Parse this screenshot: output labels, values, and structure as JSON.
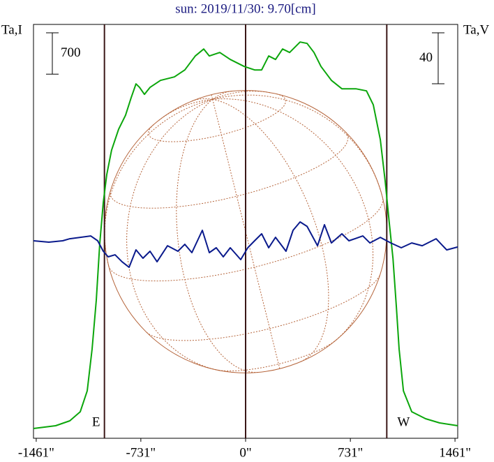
{
  "chart_data": {
    "type": "line",
    "title": "sun: 2019/11/30: 9.70[cm]",
    "y_label": "Ta,I",
    "y2_label": "Ta,V",
    "xlim": [
      -1480,
      1480
    ],
    "xticks": [
      {
        "value": -1461,
        "label": "-1461\""
      },
      {
        "value": -731,
        "label": "-731\""
      },
      {
        "value": 0,
        "label": "0\""
      },
      {
        "value": 731,
        "label": "731\""
      },
      {
        "value": 1461,
        "label": "1461\""
      }
    ],
    "ylim": [
      0,
      7000
    ],
    "y2lim": [
      0,
      325
    ],
    "scale_bars": [
      {
        "axis": "y",
        "value": 700
      },
      {
        "axis": "y2",
        "value": 40
      }
    ],
    "limbs": [
      {
        "x": -985,
        "label": "E"
      },
      {
        "x": 985,
        "label": "W"
      }
    ],
    "center_line": 0,
    "series": [
      {
        "name": "Ta,I",
        "color": "#0ba60b",
        "x": [
          -1480,
          -1325,
          -1227,
          -1154,
          -1105,
          -1071,
          -1042,
          -1018,
          -993,
          -969,
          -935,
          -886,
          -838,
          -799,
          -765,
          -740,
          -706,
          -667,
          -594,
          -497,
          -424,
          -351,
          -292,
          -253,
          -180,
          -107,
          -10,
          63,
          112,
          161,
          209,
          258,
          307,
          380,
          429,
          477,
          526,
          599,
          672,
          769,
          843,
          891,
          940,
          974,
          1003,
          1028,
          1052,
          1071,
          1101,
          1159,
          1256,
          1354,
          1480
        ],
        "values": [
          165,
          212,
          295,
          448,
          802,
          1510,
          2336,
          3280,
          3988,
          4460,
          4873,
          5227,
          5463,
          5758,
          5994,
          5935,
          5817,
          5935,
          6053,
          6112,
          6230,
          6466,
          6584,
          6466,
          6525,
          6407,
          6289,
          6230,
          6230,
          6466,
          6407,
          6584,
          6525,
          6702,
          6679,
          6525,
          6289,
          6053,
          5912,
          5912,
          5876,
          5640,
          5050,
          4342,
          3634,
          3044,
          2218,
          1510,
          802,
          448,
          330,
          260,
          212
        ]
      },
      {
        "name": "Ta,V",
        "color": "#0a1a8c",
        "axis": "y2",
        "x": [
          -1480,
          -1373,
          -1276,
          -1227,
          -1154,
          -1081,
          -1032,
          -993,
          -959,
          -911,
          -862,
          -813,
          -765,
          -716,
          -667,
          -618,
          -545,
          -472,
          -424,
          -375,
          -302,
          -253,
          -205,
          -156,
          -107,
          -34,
          15,
          63,
          112,
          161,
          209,
          282,
          331,
          380,
          429,
          502,
          550,
          599,
          672,
          721,
          818,
          867,
          940,
          1013,
          1086,
          1159,
          1232,
          1329,
          1403,
          1480
        ],
        "values": [
          155.1,
          154,
          155.1,
          156.7,
          157.8,
          158.9,
          155.1,
          146.9,
          142.5,
          144.1,
          138.6,
          134.3,
          148,
          141.4,
          146.9,
          138.6,
          151.2,
          146.9,
          152.3,
          145.8,
          163.3,
          145.8,
          149.6,
          142.5,
          149.6,
          140.3,
          149.6,
          155.1,
          160.6,
          149.6,
          157.8,
          146.9,
          163.3,
          169.9,
          166.4,
          151.2,
          167.7,
          153.4,
          160.6,
          155.1,
          158.9,
          153.4,
          157.8,
          153.4,
          149.6,
          153.4,
          151.2,
          156.7,
          147.9,
          150.2
        ]
      }
    ]
  }
}
